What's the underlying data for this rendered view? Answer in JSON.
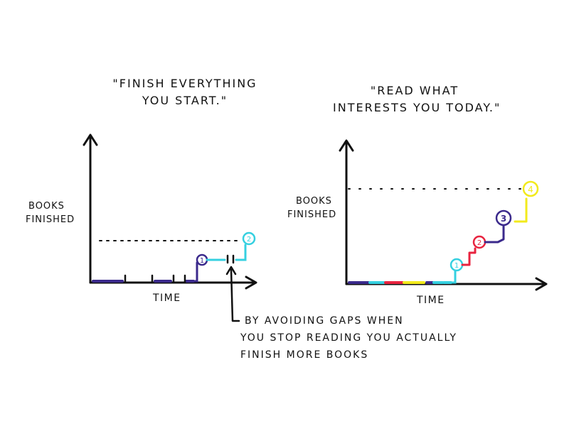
{
  "left_panel": {
    "title_line1": "\"Finish everything",
    "title_line2": "you start.\"",
    "ylabel_line1": "Books",
    "ylabel_line2": "Finished",
    "xlabel": "Time",
    "markers": [
      "1",
      "2"
    ]
  },
  "right_panel": {
    "title_line1": "\"Read what",
    "title_line2": "interests you today.\"",
    "ylabel_line1": "Books",
    "ylabel_line2": "Finished",
    "xlabel": "Time",
    "markers": [
      "1",
      "2",
      "3",
      "4"
    ]
  },
  "annotation": {
    "line1": "By avoiding gaps when",
    "line2": "you stop reading you actually",
    "line3": "finish more books"
  },
  "colors": {
    "ink": "#111111",
    "purple": "#3b2a8c",
    "cyan": "#35d0e0",
    "red": "#e8233f",
    "yellow": "#f2ea1c"
  }
}
